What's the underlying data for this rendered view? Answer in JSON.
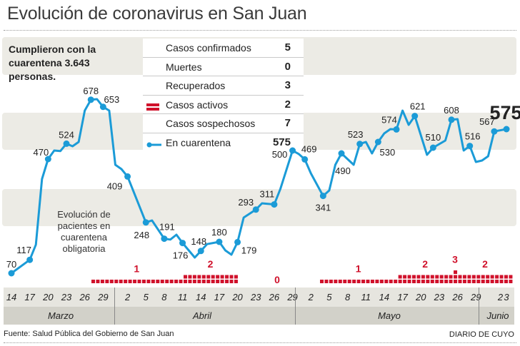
{
  "title": "Evolución de coronavirus en San Juan",
  "lead": "Cumplieron con la cuarentena 3.643 personas.",
  "note": "Evolución de pacientes en cuarentena obligatoria",
  "legend": [
    {
      "label": "Casos confirmados",
      "value": "5",
      "icon": ""
    },
    {
      "label": "Muertes",
      "value": "0",
      "icon": ""
    },
    {
      "label": "Recuperados",
      "value": "3",
      "icon": ""
    },
    {
      "label": "Casos activos",
      "value": "2",
      "icon": "red-bars-icon"
    },
    {
      "label": "Casos sospechosos",
      "value": "7",
      "icon": ""
    },
    {
      "label": "En cuarentena",
      "value": "575",
      "icon": "blue-line-dot-icon"
    }
  ],
  "colors": {
    "line": "#1b9bd7",
    "active": "#d0112b",
    "band": "#ecebe5"
  },
  "chart_data": {
    "type": "line",
    "series": [
      {
        "name": "En cuarentena",
        "points": [
          {
            "date": "Mar 14",
            "value": 70,
            "label": true
          },
          {
            "date": "Mar 17",
            "value": 117,
            "label": true
          },
          {
            "date": "Mar 18",
            "value": 170
          },
          {
            "date": "Mar 19",
            "value": 400
          },
          {
            "date": "Mar 20",
            "value": 470,
            "label": true
          },
          {
            "date": "Mar 21",
            "value": 500
          },
          {
            "date": "Mar 22",
            "value": 498
          },
          {
            "date": "Mar 23",
            "value": 524,
            "label": true
          },
          {
            "date": "Mar 24",
            "value": 515
          },
          {
            "date": "Mar 25",
            "value": 530
          },
          {
            "date": "Mar 26",
            "value": 640
          },
          {
            "date": "Mar 27",
            "value": 678,
            "label": true
          },
          {
            "date": "Mar 28",
            "value": 680
          },
          {
            "date": "Mar 29",
            "value": 653,
            "label": true
          },
          {
            "date": "Mar 30",
            "value": 640
          },
          {
            "date": "Mar 31",
            "value": 450
          },
          {
            "date": "Apr 1",
            "value": 435
          },
          {
            "date": "Apr 2",
            "value": 409,
            "label": true
          },
          {
            "date": "Apr 5",
            "value": 248,
            "label": true
          },
          {
            "date": "Apr 6",
            "value": 255
          },
          {
            "date": "Apr 8",
            "value": 191,
            "label": true
          },
          {
            "date": "Apr 9",
            "value": 188
          },
          {
            "date": "Apr 10",
            "value": 205
          },
          {
            "date": "Apr 11",
            "value": 176,
            "label": true
          },
          {
            "date": "Apr 13",
            "value": 125
          },
          {
            "date": "Apr 14",
            "value": 148,
            "label": true
          },
          {
            "date": "Apr 15",
            "value": 172
          },
          {
            "date": "Apr 17",
            "value": 180,
            "label": true
          },
          {
            "date": "Apr 18",
            "value": 150
          },
          {
            "date": "Apr 19",
            "value": 135
          },
          {
            "date": "Apr 20",
            "value": 179,
            "label": true
          },
          {
            "date": "Apr 21",
            "value": 265
          },
          {
            "date": "Apr 23",
            "value": 293,
            "label": true
          },
          {
            "date": "Apr 24",
            "value": 315
          },
          {
            "date": "Apr 26",
            "value": 311,
            "label": true
          },
          {
            "date": "Apr 27",
            "value": 365
          },
          {
            "date": "Apr 29",
            "value": 500,
            "label": true
          },
          {
            "date": "Apr 30",
            "value": 488
          },
          {
            "date": "May 1",
            "value": 469,
            "label": true
          },
          {
            "date": "May 2",
            "value": 420
          },
          {
            "date": "May 4",
            "value": 341,
            "label": true
          },
          {
            "date": "May 5",
            "value": 360
          },
          {
            "date": "May 6",
            "value": 450
          },
          {
            "date": "May 7",
            "value": 490,
            "label": true
          },
          {
            "date": "May 9",
            "value": 450
          },
          {
            "date": "May 10",
            "value": 523,
            "label": true
          },
          {
            "date": "May 11",
            "value": 530
          },
          {
            "date": "May 12",
            "value": 490
          },
          {
            "date": "May 13",
            "value": 530,
            "label": true
          },
          {
            "date": "May 14",
            "value": 560
          },
          {
            "date": "May 15",
            "value": 575
          },
          {
            "date": "May 16",
            "value": 574,
            "label": true
          },
          {
            "date": "May 17",
            "value": 640
          },
          {
            "date": "May 18",
            "value": 590
          },
          {
            "date": "May 19",
            "value": 621,
            "label": true
          },
          {
            "date": "May 21",
            "value": 485
          },
          {
            "date": "May 22",
            "value": 510,
            "label": true
          },
          {
            "date": "May 24",
            "value": 535
          },
          {
            "date": "May 25",
            "value": 608,
            "label": true
          },
          {
            "date": "May 26",
            "value": 610
          },
          {
            "date": "May 27",
            "value": 500
          },
          {
            "date": "May 28",
            "value": 516,
            "label": true
          },
          {
            "date": "May 29",
            "value": 460
          },
          {
            "date": "May 30",
            "value": 465
          },
          {
            "date": "May 31",
            "value": 480
          },
          {
            "date": "Jun 1",
            "value": 567,
            "label": true
          },
          {
            "date": "Jun 3",
            "value": 575
          }
        ]
      }
    ],
    "latest_value": "575",
    "active_cases": [
      {
        "value": 1,
        "squares": 20
      },
      {
        "value": 2,
        "squares": 12
      },
      {
        "value": 0,
        "squares": 0
      },
      {
        "value": 1,
        "squares": 17
      },
      {
        "value": 2,
        "squares": 12
      },
      {
        "value": 3,
        "squares": 1
      },
      {
        "value": 2,
        "squares": 12
      }
    ],
    "active_labels": [
      "1",
      "2",
      "0",
      "1",
      "2",
      "3",
      "2"
    ],
    "x_ticks": [
      "14",
      "17",
      "20",
      "23",
      "26",
      "29",
      "2",
      "5",
      "8",
      "11",
      "14",
      "17",
      "20",
      "23",
      "26",
      "29",
      "2",
      "5",
      "8",
      "11",
      "14",
      "17",
      "20",
      "23",
      "26",
      "29",
      "2",
      "3"
    ],
    "months": [
      "Marzo",
      "Abril",
      "Mayo",
      "Junio"
    ],
    "grid": false
  },
  "footer": {
    "source": "Fuente: Salud Pública del Gobierno de San Juan",
    "brand": "DIARIO DE CUYO"
  }
}
